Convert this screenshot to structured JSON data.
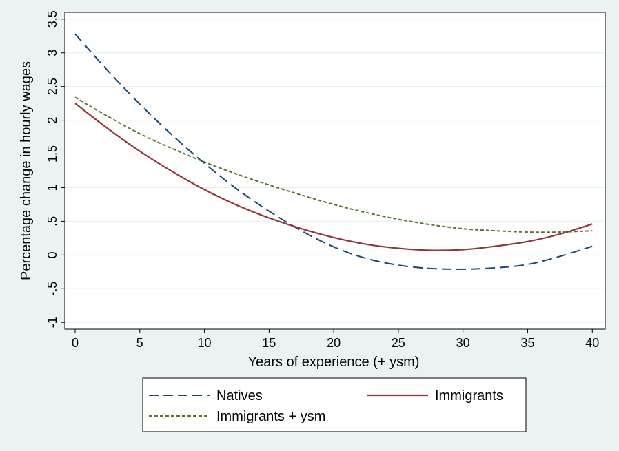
{
  "chart_data": {
    "type": "line",
    "title": "",
    "xlabel": "Years of experience (+ ysm)",
    "ylabel": "Percentage change in hourly wages",
    "xlim": [
      -0.8,
      41.0
    ],
    "ylim": [
      -1.1,
      3.6
    ],
    "xticks": [
      0,
      5,
      10,
      15,
      20,
      25,
      30,
      35,
      40
    ],
    "yticks": [
      -1,
      -0.5,
      0,
      0.5,
      1,
      1.5,
      2,
      2.5,
      3,
      3.5
    ],
    "ytick_labels": [
      "-1",
      "-.5",
      "0",
      ".5",
      "1",
      "1.5",
      "2",
      "2.5",
      "3",
      "3.5"
    ],
    "grid": "horizontal",
    "legend_position": "bottom",
    "x": [
      0,
      2.5,
      5,
      7.5,
      10,
      12.5,
      15,
      17.5,
      20,
      22.5,
      25,
      27.5,
      30,
      32.5,
      35,
      37.5,
      40
    ],
    "series": [
      {
        "name": "Natives",
        "color": "#1a476f",
        "dash": "14,7",
        "width": 2,
        "values": [
          3.28,
          2.74,
          2.24,
          1.78,
          1.36,
          0.98,
          0.65,
          0.36,
          0.12,
          -0.05,
          -0.15,
          -0.2,
          -0.21,
          -0.19,
          -0.14,
          -0.02,
          0.13
        ]
      },
      {
        "name": "Immigrants",
        "color": "#90353b",
        "dash": "",
        "width": 2.2,
        "values": [
          2.25,
          1.88,
          1.54,
          1.24,
          0.97,
          0.74,
          0.55,
          0.39,
          0.26,
          0.16,
          0.1,
          0.07,
          0.08,
          0.13,
          0.2,
          0.31,
          0.46
        ]
      },
      {
        "name": "Immigrants + ysm",
        "color": "#55752f",
        "dash": "5,3",
        "width": 2,
        "values": [
          2.34,
          2.06,
          1.8,
          1.58,
          1.38,
          1.2,
          1.04,
          0.89,
          0.75,
          0.63,
          0.53,
          0.45,
          0.39,
          0.36,
          0.34,
          0.34,
          0.36
        ]
      }
    ]
  }
}
